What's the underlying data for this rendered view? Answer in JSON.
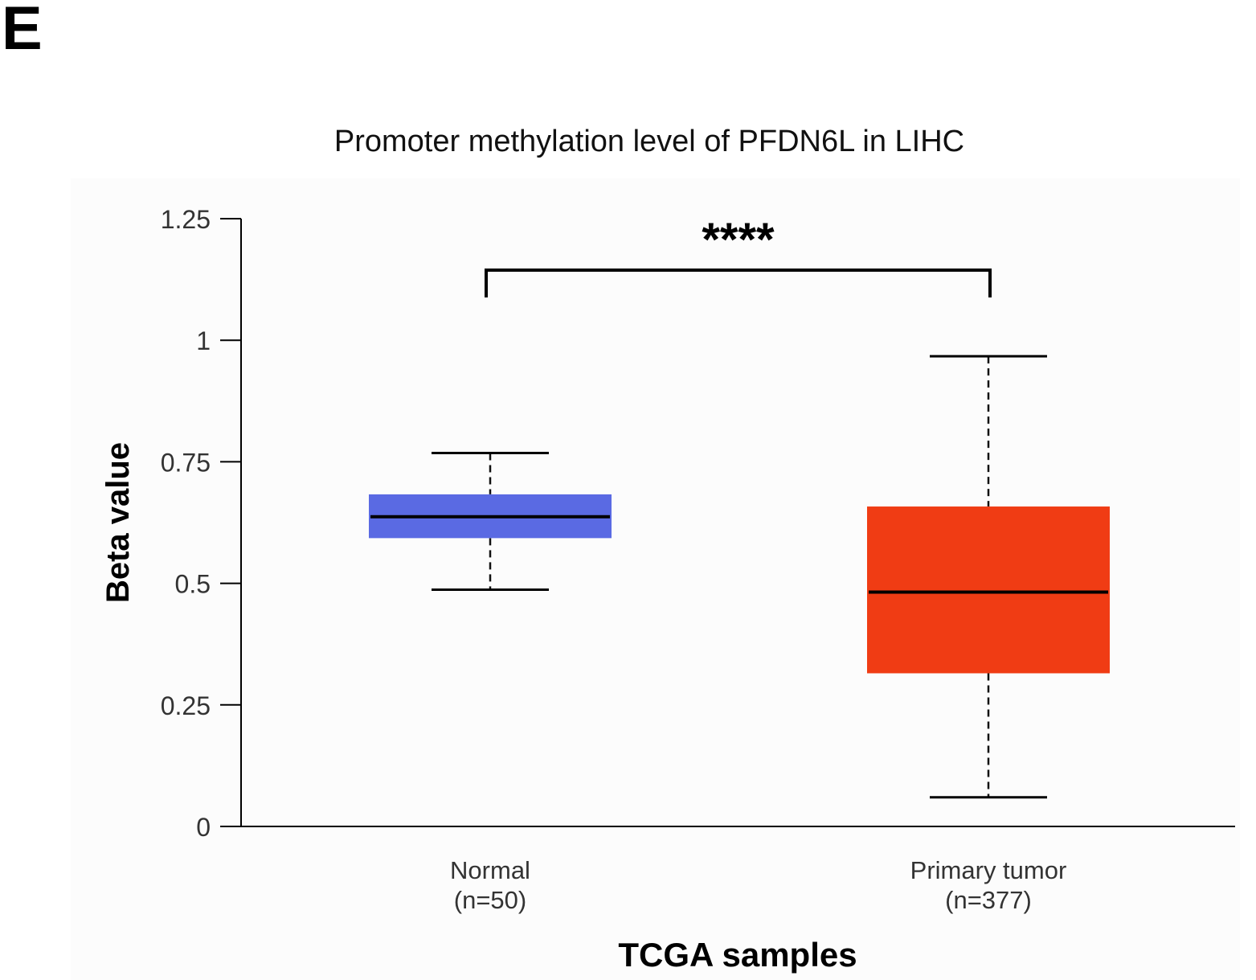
{
  "panel_label": "E",
  "chart_data": {
    "type": "box",
    "title": "Promoter methylation level of PFDN6L in LIHC",
    "xlabel": "TCGA samples",
    "ylabel": "Beta value",
    "ylim": [
      0,
      1.25
    ],
    "yticks": [
      0,
      0.25,
      0.5,
      0.75,
      1,
      1.25
    ],
    "ytick_labels": [
      "0",
      "0.25",
      "0.5",
      "0.75",
      "1",
      "1.25"
    ],
    "significance": "****",
    "groups": [
      {
        "name": "Normal",
        "n_label": "(n=50)",
        "color": "#5A6AE3",
        "whisker_low": 0.487,
        "q1": 0.593,
        "median": 0.637,
        "q3": 0.683,
        "whisker_high": 0.768
      },
      {
        "name": "Primary tumor",
        "n_label": "(n=377)",
        "color": "#F03C14",
        "whisker_low": 0.06,
        "q1": 0.315,
        "median": 0.482,
        "q3": 0.658,
        "whisker_high": 0.967
      }
    ]
  }
}
